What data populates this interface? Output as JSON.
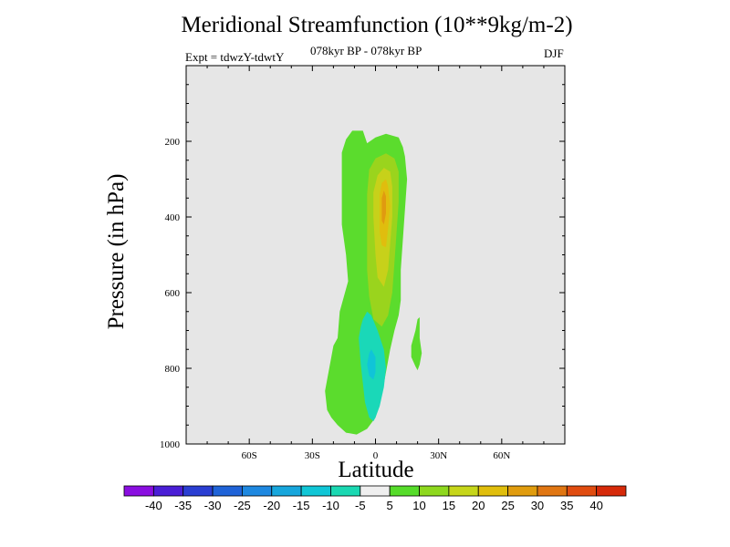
{
  "chart_data": {
    "type": "contour",
    "title": "Meridional Streamfunction (10**9kg/m-2)",
    "subtitle": "078kyr BP - 078kyr BP",
    "experiment": "Expt = tdwzY-tdwtY",
    "season": "DJF",
    "xlabel": "Latitude",
    "ylabel": "Pressure (in hPa)",
    "xlim": [
      -90,
      90
    ],
    "ylim": [
      1000,
      0
    ],
    "x_ticks": [
      {
        "value": -60,
        "label": "60S"
      },
      {
        "value": -30,
        "label": "30S"
      },
      {
        "value": 0,
        "label": "0"
      },
      {
        "value": 30,
        "label": "30N"
      },
      {
        "value": 60,
        "label": "60N"
      }
    ],
    "y_ticks": [
      {
        "value": 200,
        "label": "200"
      },
      {
        "value": 400,
        "label": "400"
      },
      {
        "value": 600,
        "label": "600"
      },
      {
        "value": 800,
        "label": "800"
      },
      {
        "value": 1000,
        "label": "1000"
      }
    ],
    "colorbar": {
      "labels": [
        "-40",
        "-35",
        "-30",
        "-25",
        "-20",
        "-15",
        "-10",
        "-5",
        "5",
        "10",
        "15",
        "20",
        "25",
        "30",
        "35",
        "40"
      ],
      "colors": [
        "#8a0ee0",
        "#4a1ed6",
        "#2a3ed2",
        "#1f63d8",
        "#1e88e0",
        "#17a6dc",
        "#10c6d6",
        "#1ad8b2",
        "#efefef",
        "#56dc2a",
        "#8ed81e",
        "#c6d61a",
        "#e0be0c",
        "#e09c0e",
        "#e07612",
        "#e04c10",
        "#d62a0a"
      ]
    },
    "contours": [
      {
        "name": "contour-positive-5-10",
        "color": "#5bdc2d",
        "points": [
          [
            -14,
            970
          ],
          [
            -18,
            950
          ],
          [
            -21,
            930
          ],
          [
            -23,
            910
          ],
          [
            -24,
            860
          ],
          [
            -23,
            830
          ],
          [
            -21,
            770
          ],
          [
            -20,
            740
          ],
          [
            -18,
            720
          ],
          [
            -17,
            650
          ],
          [
            -15,
            610
          ],
          [
            -13,
            570
          ],
          [
            -14,
            500
          ],
          [
            -16,
            420
          ],
          [
            -16,
            230
          ],
          [
            -14,
            195
          ],
          [
            -11,
            172
          ],
          [
            -6,
            172
          ],
          [
            -4,
            205
          ],
          [
            0,
            190
          ],
          [
            5,
            180
          ],
          [
            11,
            190
          ],
          [
            13,
            215
          ],
          [
            14,
            240
          ],
          [
            15,
            300
          ],
          [
            14,
            380
          ],
          [
            13,
            460
          ],
          [
            12,
            540
          ],
          [
            12,
            620
          ],
          [
            11,
            660
          ],
          [
            9,
            700
          ],
          [
            7,
            750
          ],
          [
            5,
            810
          ],
          [
            3,
            870
          ],
          [
            0,
            930
          ],
          [
            -4,
            960
          ],
          [
            -9,
            975
          ]
        ]
      },
      {
        "name": "contour-positive-5-10-right",
        "color": "#5bdc2d",
        "points": [
          [
            20,
            805
          ],
          [
            21,
            790
          ],
          [
            22,
            760
          ],
          [
            21,
            720
          ],
          [
            21,
            690
          ],
          [
            21,
            665
          ],
          [
            20,
            670
          ],
          [
            19,
            700
          ],
          [
            17,
            740
          ],
          [
            17,
            770
          ],
          [
            19,
            795
          ]
        ]
      },
      {
        "name": "contour-positive-10-15",
        "color": "#9ad41d",
        "points": [
          [
            -4,
            340
          ],
          [
            -3,
            275
          ],
          [
            0,
            245
          ],
          [
            5,
            232
          ],
          [
            9,
            245
          ],
          [
            11,
            280
          ],
          [
            11,
            360
          ],
          [
            10,
            440
          ],
          [
            9,
            520
          ],
          [
            8,
            600
          ],
          [
            6,
            660
          ],
          [
            3,
            690
          ],
          [
            -1,
            670
          ],
          [
            -3,
            610
          ],
          [
            -4,
            540
          ],
          [
            -4,
            450
          ]
        ]
      },
      {
        "name": "contour-positive-15-20",
        "color": "#c7d11a",
        "points": [
          [
            -1,
            400
          ],
          [
            -1,
            335
          ],
          [
            1,
            290
          ],
          [
            4,
            270
          ],
          [
            7,
            280
          ],
          [
            8,
            320
          ],
          [
            8,
            400
          ],
          [
            7,
            470
          ],
          [
            6,
            540
          ],
          [
            4,
            585
          ],
          [
            1,
            560
          ],
          [
            0,
            500
          ]
        ]
      },
      {
        "name": "contour-positive-20-25",
        "color": "#e0bd0e",
        "points": [
          [
            2,
            390
          ],
          [
            2,
            340
          ],
          [
            3,
            310
          ],
          [
            5,
            300
          ],
          [
            6,
            320
          ],
          [
            7,
            370
          ],
          [
            6,
            430
          ],
          [
            5,
            480
          ],
          [
            3,
            475
          ],
          [
            2,
            440
          ]
        ]
      },
      {
        "name": "contour-positive-25-30",
        "color": "#e09a10",
        "points": [
          [
            3,
            380
          ],
          [
            3,
            350
          ],
          [
            4,
            330
          ],
          [
            5,
            345
          ],
          [
            5,
            390
          ],
          [
            4,
            420
          ],
          [
            3,
            410
          ]
        ]
      },
      {
        "name": "contour-negative-10-5",
        "color": "#1ad8b8",
        "points": [
          [
            -8,
            720
          ],
          [
            -7,
            690
          ],
          [
            -6,
            670
          ],
          [
            -4,
            650
          ],
          [
            -2,
            660
          ],
          [
            1,
            700
          ],
          [
            4,
            750
          ],
          [
            5,
            800
          ],
          [
            4,
            850
          ],
          [
            2,
            900
          ],
          [
            0,
            930
          ],
          [
            -1,
            940
          ],
          [
            -3,
            930
          ],
          [
            -5,
            890
          ],
          [
            -6,
            840
          ],
          [
            -7,
            790
          ]
        ]
      },
      {
        "name": "contour-negative-15-10",
        "color": "#10c4d8",
        "points": [
          [
            -4,
            790
          ],
          [
            -3,
            760
          ],
          [
            -2,
            750
          ],
          [
            0,
            770
          ],
          [
            0,
            810
          ],
          [
            -1,
            830
          ],
          [
            -3,
            820
          ]
        ]
      }
    ]
  }
}
